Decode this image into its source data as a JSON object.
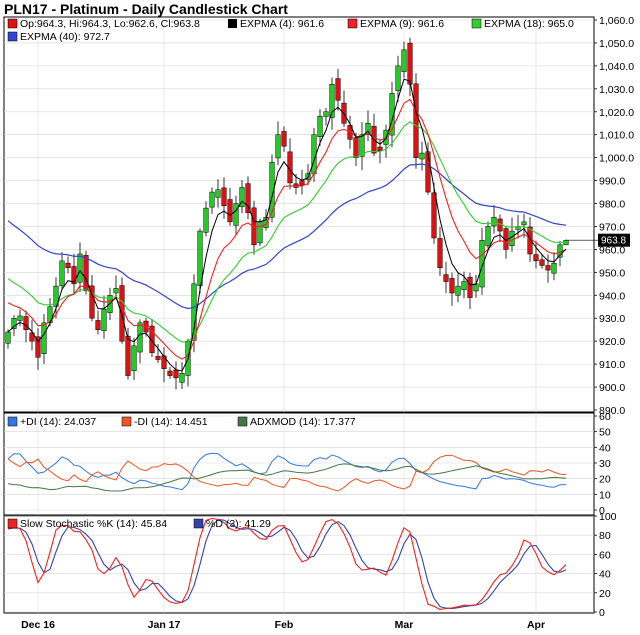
{
  "title": "PLN17 - Platinum - Daily Candlestick Chart",
  "colors": {
    "up": "#22cc22",
    "down": "#dd1111",
    "expma4": "#000000",
    "expma9": "#ee2222",
    "expma18": "#33cc33",
    "expma40": "#3344cc",
    "plus_di": "#3377dd",
    "minus_di": "#ee5522",
    "adx": "#447744",
    "stoch_k": "#ee2222",
    "stoch_d": "#3344aa"
  },
  "price_legend": {
    "ohlc": "Op:964.3, Hi:964.3, Lo:962.6, Cl:963.8",
    "expma4": "EXPMA (4): 961.6",
    "expma9": "EXPMA (9): 961.6",
    "expma18": "EXPMA (18): 965.0",
    "expma40": "EXPMA (40): 972.7"
  },
  "last_price_label": "963.8",
  "dmi_legend": {
    "plus_di": "+DI (14): 24.037",
    "minus_di": "-DI (14): 14.451",
    "adx": "ADXMOD (14): 17.377"
  },
  "stoch_legend": {
    "k": "Slow Stochastic %K (14): 45.84",
    "d": "%D (3): 41.29"
  },
  "chart_data": {
    "type": "candlestick",
    "x_labels": [
      "Dec 16",
      "Jan 17",
      "Feb",
      "Mar",
      "Apr"
    ],
    "x_label_index": [
      5,
      26,
      46,
      66,
      88
    ],
    "price_ylim": [
      890,
      1060
    ],
    "price_ticks": [
      "890.0",
      "900.0",
      "910.0",
      "920.0",
      "930.0",
      "940.0",
      "950.0",
      "960.0",
      "970.0",
      "980.0",
      "990.0",
      "1,000.0",
      "1,010.0",
      "1,020.0",
      "1,030.0",
      "1,040.0",
      "1,050.0",
      "1,060.0"
    ],
    "dmi_ylim": [
      0,
      60
    ],
    "dmi_ticks": [
      "0",
      "10",
      "20",
      "30",
      "40",
      "50",
      "60"
    ],
    "stoch_ylim": [
      0,
      100
    ],
    "stoch_ticks": [
      "0",
      "20",
      "40",
      "60",
      "80",
      "100"
    ],
    "closes": [
      924,
      930,
      931,
      925,
      920,
      913,
      928,
      935,
      944,
      955,
      952,
      945,
      958,
      942,
      930,
      925,
      934,
      940,
      943,
      920,
      905,
      918,
      928,
      924,
      915,
      912,
      908,
      905,
      904,
      906,
      920,
      945,
      968,
      978,
      985,
      986,
      979,
      972,
      980,
      987,
      976,
      962,
      972,
      974,
      998,
      1010,
      1005,
      989,
      987,
      988,
      993,
      1010,
      1018,
      1020,
      1032,
      1025,
      1015,
      1008,
      1000,
      1010,
      1015,
      1002,
      1003,
      1012,
      1028,
      1040,
      1047,
      1032,
      1000,
      1002,
      985,
      965,
      952,
      946,
      941,
      944,
      946,
      939,
      945,
      964,
      970,
      974,
      968,
      960,
      968,
      970,
      972,
      958,
      955,
      953,
      951,
      954,
      962,
      964
    ]
  }
}
